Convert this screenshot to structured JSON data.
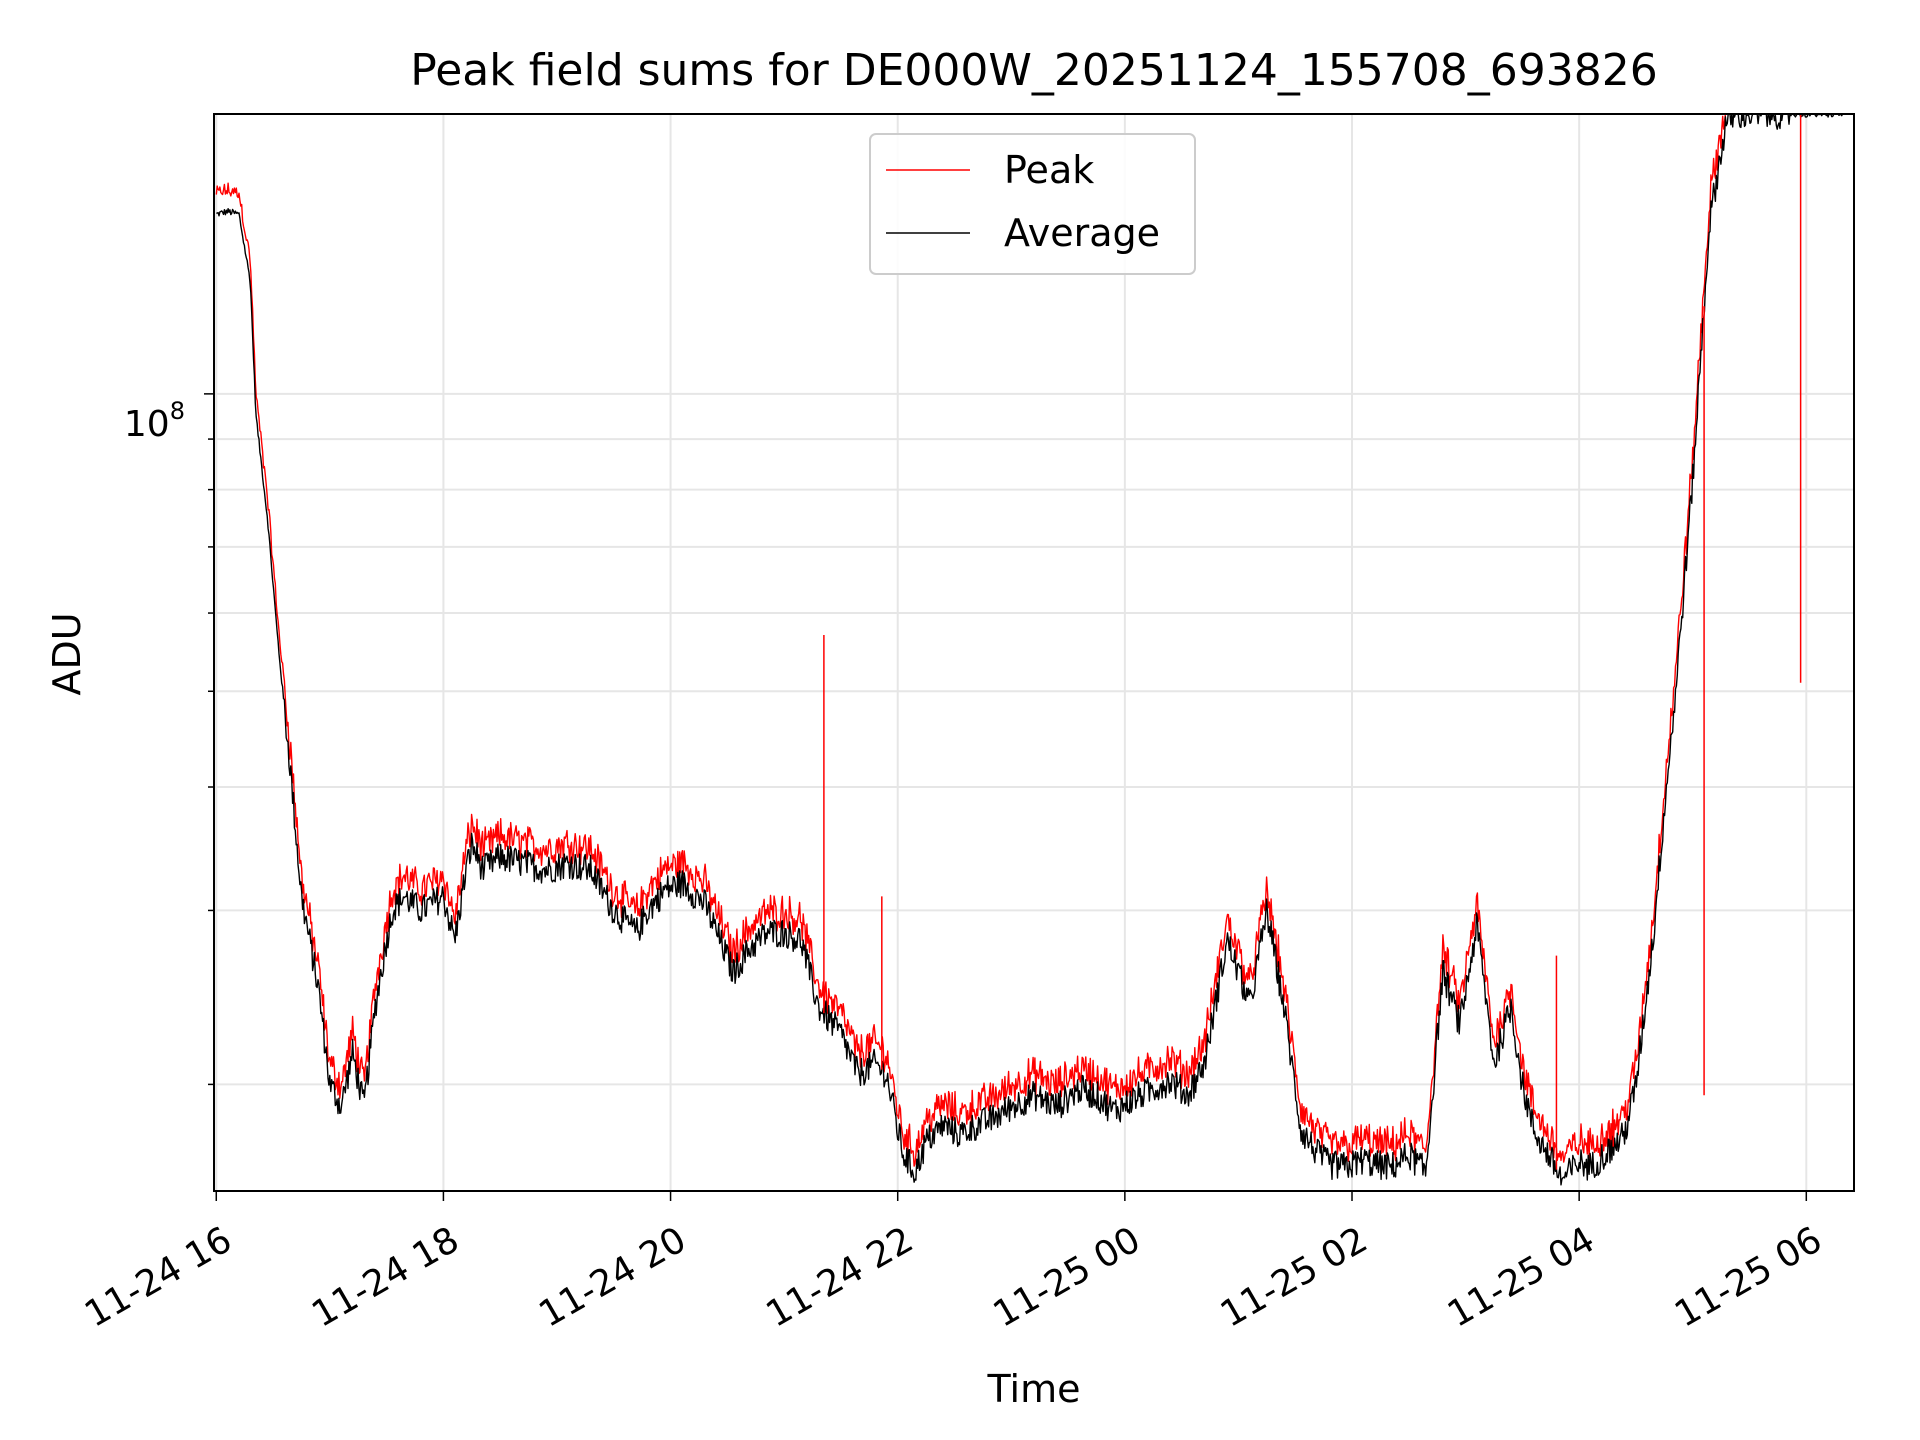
{
  "chart_data": {
    "type": "line",
    "title": "Peak field sums for DE000W_20251124_155708_693826",
    "xlabel": "Time",
    "ylabel": "ADU",
    "yscale": "log",
    "ylim": [
      15600000,
      192000000
    ],
    "xlim_hours": [
      -0.02,
      14.42
    ],
    "x_ticks": [
      "11-24 16",
      "11-24 18",
      "11-24 20",
      "11-24 22",
      "11-25 00",
      "11-25 02",
      "11-25 04",
      "11-25 06"
    ],
    "x_tick_hours": [
      0,
      2,
      4,
      6,
      8,
      10,
      12,
      14
    ],
    "y_tick_label": {
      "base": "10",
      "exp": "8"
    },
    "y_major_tick": 100000000,
    "y_minor_ticks": [
      20000000,
      30000000,
      40000000,
      50000000,
      60000000,
      70000000,
      80000000,
      90000000
    ],
    "legend": {
      "position": "upper center",
      "entries": [
        "Peak",
        "Average"
      ]
    },
    "grid": true,
    "colors": {
      "peak": "#ff0000",
      "average": "#000000"
    },
    "series": [
      {
        "name": "Average",
        "x_hours": [
          0.0,
          0.1,
          0.2,
          0.3,
          0.35,
          0.45,
          0.55,
          0.65,
          0.75,
          0.9,
          1.0,
          1.1,
          1.2,
          1.3,
          1.4,
          1.5,
          1.55,
          1.65,
          1.8,
          2.0,
          2.1,
          2.2,
          2.25,
          2.35,
          2.5,
          2.7,
          2.9,
          3.1,
          3.3,
          3.5,
          3.7,
          3.8,
          3.95,
          4.1,
          4.3,
          4.55,
          4.7,
          4.85,
          5.0,
          5.15,
          5.3,
          5.5,
          5.65,
          5.8,
          5.9,
          6.0,
          6.05,
          6.15,
          6.25,
          6.4,
          6.55,
          6.7,
          6.85,
          7.0,
          7.2,
          7.4,
          7.6,
          7.75,
          7.9,
          8.1,
          8.25,
          8.4,
          8.55,
          8.7,
          8.9,
          9.0,
          9.1,
          9.25,
          9.4,
          9.55,
          9.7,
          9.8,
          9.95,
          10.1,
          10.2,
          10.35,
          10.5,
          10.65,
          10.8,
          10.95,
          11.1,
          11.25,
          11.4,
          11.5,
          11.6,
          11.75,
          11.85,
          12.0,
          12.1,
          12.2,
          12.3,
          12.4,
          12.5,
          12.65,
          12.75,
          12.85,
          13.0,
          13.15,
          13.3,
          13.45,
          13.6,
          13.75,
          13.85,
          13.95,
          14.05,
          14.15,
          14.25,
          14.32
        ],
        "values": [
          152000000,
          153000000,
          152000000,
          130000000,
          95000000,
          75000000,
          55000000,
          42000000,
          31000000,
          25000000,
          20000000,
          19000000,
          21500000,
          19000000,
          24000000,
          28000000,
          30000000,
          31000000,
          30000000,
          31000000,
          28000000,
          33000000,
          35000000,
          33000000,
          34000000,
          33500000,
          33000000,
          33500000,
          33000000,
          30000000,
          28500000,
          30000000,
          31500000,
          32000000,
          30500000,
          26000000,
          27500000,
          28500000,
          28500000,
          28000000,
          24000000,
          22500000,
          20500000,
          21000000,
          20500000,
          18000000,
          17000000,
          16300000,
          17500000,
          18200000,
          17800000,
          18200000,
          18500000,
          19000000,
          19500000,
          19000000,
          19800000,
          19500000,
          18800000,
          19400000,
          19800000,
          20200000,
          19500000,
          21000000,
          28000000,
          26000000,
          24000000,
          30000000,
          24000000,
          18000000,
          17000000,
          16600000,
          16500000,
          16800000,
          16600000,
          16500000,
          17000000,
          16300000,
          26000000,
          23000000,
          29000000,
          21000000,
          24000000,
          20000000,
          18000000,
          16800000,
          16000000,
          16700000,
          16500000,
          16900000,
          17300000,
          17800000,
          20000000,
          28000000,
          38000000,
          50000000,
          82000000,
          150000000,
          190000000,
          192000000,
          192000000,
          192000000,
          192000000,
          192000000,
          192000000,
          192000000,
          192000000,
          192000000
        ]
      },
      {
        "name": "Peak",
        "spikes": [
          {
            "x_hours": 5.35,
            "value": 57000000
          },
          {
            "x_hours": 5.86,
            "value": 31000000
          },
          {
            "x_hours": 11.8,
            "value": 27000000
          },
          {
            "x_hours": 12.3,
            "value": 18400000
          },
          {
            "x_hours": 13.1,
            "value": 19500000
          },
          {
            "x_hours": 13.95,
            "value": 51000000
          }
        ]
      }
    ]
  }
}
